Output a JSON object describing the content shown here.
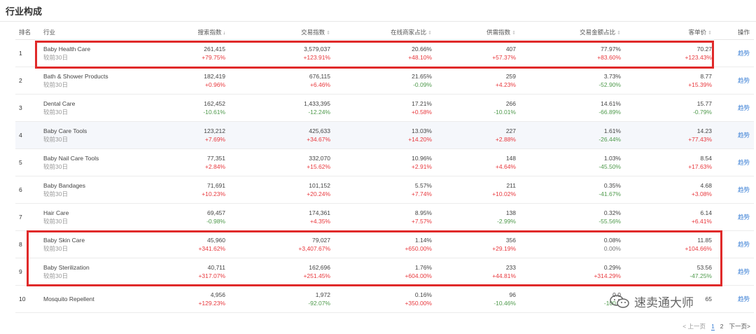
{
  "title": "行业构成",
  "columns": {
    "rank": "排名",
    "industry": "行业",
    "search": "搜索指数",
    "trade": "交易指数",
    "online_share": "在线商家占比",
    "supply": "供需指数",
    "amount_share": "交易金额占比",
    "unit_price": "客单价",
    "op": "操作"
  },
  "rows": [
    {
      "rank": "1",
      "name": "Baby Health Care",
      "sub": "较前30日",
      "search": "261,415",
      "search_chg": "+79.75%",
      "trade": "3,579,037",
      "trade_chg": "+123.91%",
      "online": "20.66%",
      "online_chg": "+48.10%",
      "supply": "407",
      "supply_chg": "+57.37%",
      "amount": "77.97%",
      "amount_chg": "+83.60%",
      "price": "70.27",
      "price_chg": "+123.43%",
      "op": "趋势"
    },
    {
      "rank": "2",
      "name": "Bath & Shower Products",
      "sub": "较前30日",
      "search": "182,419",
      "search_chg": "+0.96%",
      "trade": "676,115",
      "trade_chg": "+6.46%",
      "online": "21.65%",
      "online_chg": "-0.09%",
      "supply": "259",
      "supply_chg": "+4.23%",
      "amount": "3.73%",
      "amount_chg": "-52.90%",
      "price": "8.77",
      "price_chg": "+15.39%",
      "op": "趋势"
    },
    {
      "rank": "3",
      "name": "Dental Care",
      "sub": "较前30日",
      "search": "162,452",
      "search_chg": "-10.61%",
      "trade": "1,433,395",
      "trade_chg": "-12.24%",
      "online": "17.21%",
      "online_chg": "+0.58%",
      "supply": "266",
      "supply_chg": "-10.01%",
      "amount": "14.61%",
      "amount_chg": "-66.89%",
      "price": "15.77",
      "price_chg": "-0.79%",
      "op": "趋势"
    },
    {
      "rank": "4",
      "name": "Baby Care Tools",
      "sub": "较前30日",
      "search": "123,212",
      "search_chg": "+7.69%",
      "trade": "425,633",
      "trade_chg": "+34.67%",
      "online": "13.03%",
      "online_chg": "+14.20%",
      "supply": "227",
      "supply_chg": "+2.88%",
      "amount": "1.61%",
      "amount_chg": "-26.44%",
      "price": "14.23",
      "price_chg": "+77.43%",
      "op": "趋势"
    },
    {
      "rank": "5",
      "name": "Baby Nail Care Tools",
      "sub": "较前30日",
      "search": "77,351",
      "search_chg": "+2.84%",
      "trade": "332,070",
      "trade_chg": "+15.62%",
      "online": "10.96%",
      "online_chg": "+2.91%",
      "supply": "148",
      "supply_chg": "+4.64%",
      "amount": "1.03%",
      "amount_chg": "-45.50%",
      "price": "8.54",
      "price_chg": "+17.63%",
      "op": "趋势"
    },
    {
      "rank": "6",
      "name": "Baby Bandages",
      "sub": "较前30日",
      "search": "71,691",
      "search_chg": "+10.23%",
      "trade": "101,152",
      "trade_chg": "+20.24%",
      "online": "5.57%",
      "online_chg": "+7.74%",
      "supply": "211",
      "supply_chg": "+10.02%",
      "amount": "0.35%",
      "amount_chg": "-41.67%",
      "price": "4.68",
      "price_chg": "+3.08%",
      "op": "趋势"
    },
    {
      "rank": "7",
      "name": "Hair Care",
      "sub": "较前30日",
      "search": "69,457",
      "search_chg": "-0.98%",
      "trade": "174,361",
      "trade_chg": "+4.35%",
      "online": "8.95%",
      "online_chg": "+7.57%",
      "supply": "138",
      "supply_chg": "-2.99%",
      "amount": "0.32%",
      "amount_chg": "-55.56%",
      "price": "6.14",
      "price_chg": "+6.41%",
      "op": "趋势"
    },
    {
      "rank": "8",
      "name": "Baby Skin Care",
      "sub": "较前30日",
      "search": "45,960",
      "search_chg": "+341.62%",
      "trade": "79,027",
      "trade_chg": "+3,407.67%",
      "online": "1.14%",
      "online_chg": "+650.00%",
      "supply": "356",
      "supply_chg": "+29.19%",
      "amount": "0.08%",
      "amount_chg": "0.00%",
      "price": "11.85",
      "price_chg": "+104.66%",
      "op": "趋势"
    },
    {
      "rank": "9",
      "name": "Baby Sterilization",
      "sub": "较前30日",
      "search": "40,711",
      "search_chg": "+317.07%",
      "trade": "162,696",
      "trade_chg": "+251.45%",
      "online": "1.76%",
      "online_chg": "+604.00%",
      "supply": "233",
      "supply_chg": "+44.81%",
      "amount": "0.29%",
      "amount_chg": "+314.29%",
      "price": "53.56",
      "price_chg": "-47.25%",
      "op": "趋势"
    },
    {
      "rank": "10",
      "name": "Mosquito Repellent",
      "sub": "",
      "search": "4,956",
      "search_chg": "+129.23%",
      "trade": "1,972",
      "trade_chg": "-92.07%",
      "online": "0.16%",
      "online_chg": "+350.00%",
      "supply": "96",
      "supply_chg": "-10.46%",
      "amount": "0.0",
      "amount_chg": "-100.0",
      "price": "65",
      "price_chg": "",
      "op": "趋势"
    }
  ],
  "pager": {
    "prev": "< 上一页",
    "page1": "1",
    "page2": "2",
    "next": "下一页>"
  },
  "watermark": "速卖通大师",
  "colors": {
    "up": "#e8383d",
    "down": "#4f9a4c",
    "link": "#3a7fd5",
    "highlight_box": "#e02a2a"
  }
}
